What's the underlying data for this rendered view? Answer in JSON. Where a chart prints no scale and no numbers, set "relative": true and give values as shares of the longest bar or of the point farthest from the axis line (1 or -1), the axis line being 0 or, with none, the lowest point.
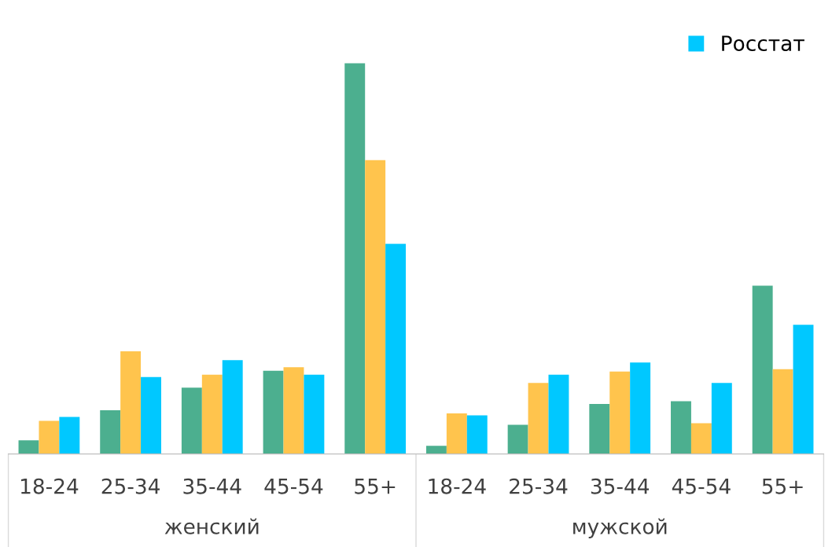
{
  "chart_data": {
    "type": "bar",
    "relative": true,
    "categories": [
      "18-24",
      "25-34",
      "35-44",
      "45-54",
      "55+",
      "18-24",
      "25-34",
      "35-44",
      "45-54",
      "55+"
    ],
    "series": [
      {
        "color": "#4caf8f",
        "values": [
          0.035,
          0.112,
          0.17,
          0.213,
          1,
          0.021,
          0.075,
          0.128,
          0.135,
          0.431
        ]
      },
      {
        "color": "#ffc44d",
        "values": [
          0.085,
          0.263,
          0.203,
          0.222,
          0.752,
          0.104,
          0.182,
          0.211,
          0.079,
          0.217
        ]
      },
      {
        "name": "Росстат",
        "color": "#00c8ff",
        "values": [
          0.095,
          0.197,
          0.24,
          0.203,
          0.538,
          0.099,
          0.203,
          0.234,
          0.182,
          0.331
        ]
      }
    ],
    "annotations": [
      "женский",
      "мужской"
    ],
    "legend": "top right",
    "grid": false
  }
}
